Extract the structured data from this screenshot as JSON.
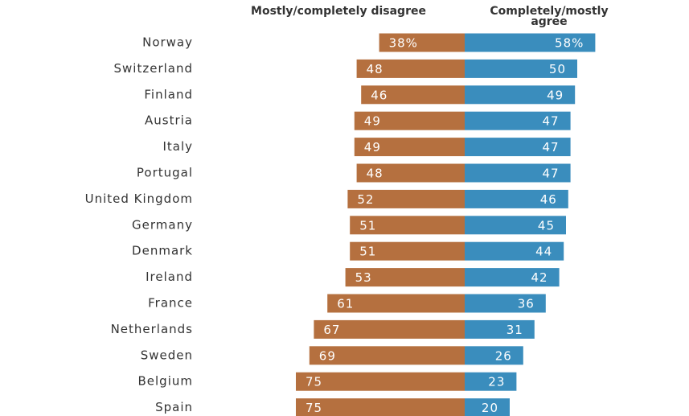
{
  "chart_data": {
    "type": "diverging-bar",
    "categories": [
      "Norway",
      "Switzerland",
      "Finland",
      "Austria",
      "Italy",
      "Portugal",
      "United Kingdom",
      "Germany",
      "Denmark",
      "Ireland",
      "France",
      "Netherlands",
      "Sweden",
      "Belgium",
      "Spain"
    ],
    "series": [
      {
        "name": "Mostly/completely disagree",
        "color": "#b5703f",
        "side": "left",
        "values": [
          38,
          48,
          46,
          49,
          49,
          48,
          52,
          51,
          51,
          53,
          61,
          67,
          69,
          75,
          75
        ],
        "value_labels": [
          "38%",
          "48",
          "46",
          "49",
          "49",
          "48",
          "52",
          "51",
          "51",
          "53",
          "61",
          "67",
          "69",
          "75",
          "75"
        ]
      },
      {
        "name": "Completely/mostly agree",
        "color": "#3a8dbd",
        "side": "right",
        "values": [
          58,
          50,
          49,
          47,
          47,
          47,
          46,
          45,
          44,
          42,
          36,
          31,
          26,
          23,
          20
        ],
        "value_labels": [
          "58%",
          "50",
          "49",
          "47",
          "47",
          "47",
          "46",
          "45",
          "44",
          "42",
          "36",
          "31",
          "26",
          "23",
          "20"
        ]
      }
    ]
  }
}
